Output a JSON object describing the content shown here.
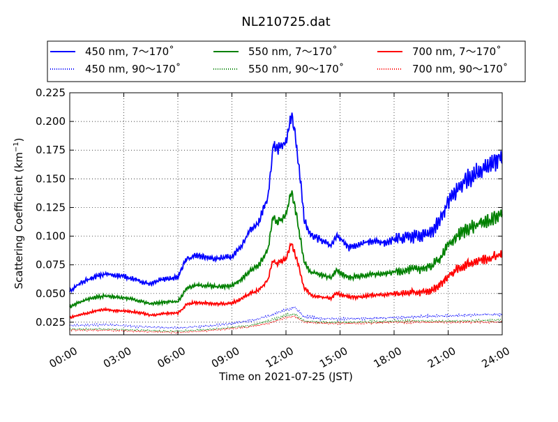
{
  "chart_data": {
    "type": "line",
    "title": "NL210725.dat",
    "xlabel": "Time on 2021-07-25 (JST)",
    "ylabel_main": "Scattering Coefficient (km",
    "ylabel_sup": "−1",
    "ylabel_close": ")",
    "xlim": [
      "00:00",
      "24:00"
    ],
    "ylim": [
      0.014,
      0.225
    ],
    "x_ticks": [
      "00:00",
      "03:00",
      "06:00",
      "09:00",
      "12:00",
      "15:00",
      "18:00",
      "21:00",
      "24:00"
    ],
    "y_ticks": [
      "0.025",
      "0.050",
      "0.075",
      "0.100",
      "0.125",
      "0.150",
      "0.175",
      "0.200",
      "0.225"
    ],
    "grid": true,
    "legend_position": "top",
    "series": [
      {
        "name": "450 nm, 7～170˚",
        "color": "#0000ff",
        "style": "solid",
        "key_hours": [
          0,
          0.5,
          1,
          1.5,
          2,
          2.5,
          3,
          3.5,
          4,
          4.5,
          5,
          5.5,
          6,
          6.3,
          6.5,
          7,
          7.5,
          8,
          8.5,
          9,
          9.5,
          10,
          10.5,
          11,
          11.3,
          11.5,
          12,
          12.3,
          12.5,
          12.8,
          13,
          13.3,
          13.5,
          14,
          14.5,
          14.8,
          15,
          15.5,
          16,
          16.5,
          17,
          17.5,
          18,
          18.5,
          19,
          19.5,
          20,
          20.5,
          21,
          21.5,
          22,
          22.5,
          23,
          23.5,
          24
        ],
        "values": [
          0.052,
          0.058,
          0.062,
          0.065,
          0.067,
          0.066,
          0.065,
          0.063,
          0.06,
          0.058,
          0.062,
          0.063,
          0.064,
          0.075,
          0.08,
          0.083,
          0.082,
          0.08,
          0.081,
          0.082,
          0.09,
          0.105,
          0.112,
          0.135,
          0.18,
          0.175,
          0.182,
          0.205,
          0.19,
          0.15,
          0.115,
          0.102,
          0.1,
          0.096,
          0.092,
          0.1,
          0.098,
          0.09,
          0.092,
          0.095,
          0.096,
          0.094,
          0.097,
          0.098,
          0.1,
          0.1,
          0.102,
          0.112,
          0.13,
          0.14,
          0.15,
          0.154,
          0.16,
          0.165,
          0.17
        ]
      },
      {
        "name": "550 nm, 7～170˚",
        "color": "#008000",
        "style": "solid",
        "key_hours": [
          0,
          0.5,
          1,
          1.5,
          2,
          2.5,
          3,
          3.5,
          4,
          4.5,
          5,
          5.5,
          6,
          6.3,
          6.5,
          7,
          7.5,
          8,
          8.5,
          9,
          9.5,
          10,
          10.5,
          11,
          11.3,
          11.5,
          12,
          12.3,
          12.5,
          12.8,
          13,
          13.3,
          13.5,
          14,
          14.5,
          14.8,
          15,
          15.5,
          16,
          16.5,
          17,
          17.5,
          18,
          18.5,
          19,
          19.5,
          20,
          20.5,
          21,
          21.5,
          22,
          22.5,
          23,
          23.5,
          24
        ],
        "values": [
          0.038,
          0.042,
          0.045,
          0.047,
          0.048,
          0.047,
          0.046,
          0.045,
          0.043,
          0.041,
          0.042,
          0.043,
          0.043,
          0.05,
          0.055,
          0.057,
          0.057,
          0.056,
          0.056,
          0.057,
          0.062,
          0.07,
          0.075,
          0.088,
          0.118,
          0.112,
          0.118,
          0.14,
          0.125,
          0.098,
          0.078,
          0.07,
          0.068,
          0.066,
          0.064,
          0.07,
          0.068,
          0.064,
          0.065,
          0.066,
          0.067,
          0.067,
          0.069,
          0.07,
          0.071,
          0.072,
          0.073,
          0.08,
          0.092,
          0.1,
          0.106,
          0.109,
          0.112,
          0.115,
          0.12
        ]
      },
      {
        "name": "700 nm, 7～170˚",
        "color": "#ff0000",
        "style": "solid",
        "key_hours": [
          0,
          0.5,
          1,
          1.5,
          2,
          2.5,
          3,
          3.5,
          4,
          4.5,
          5,
          5.5,
          6,
          6.3,
          6.5,
          7,
          7.5,
          8,
          8.5,
          9,
          9.5,
          10,
          10.5,
          11,
          11.3,
          11.5,
          12,
          12.3,
          12.5,
          12.8,
          13,
          13.3,
          13.5,
          14,
          14.5,
          14.8,
          15,
          15.5,
          16,
          16.5,
          17,
          17.5,
          18,
          18.5,
          19,
          19.5,
          20,
          20.5,
          21,
          21.5,
          22,
          22.5,
          23,
          23.5,
          24
        ],
        "values": [
          0.029,
          0.031,
          0.033,
          0.035,
          0.036,
          0.035,
          0.035,
          0.034,
          0.033,
          0.031,
          0.032,
          0.033,
          0.033,
          0.037,
          0.041,
          0.042,
          0.042,
          0.041,
          0.041,
          0.042,
          0.045,
          0.05,
          0.053,
          0.062,
          0.08,
          0.076,
          0.08,
          0.094,
          0.085,
          0.068,
          0.055,
          0.05,
          0.048,
          0.047,
          0.046,
          0.05,
          0.049,
          0.047,
          0.047,
          0.048,
          0.049,
          0.049,
          0.05,
          0.05,
          0.051,
          0.051,
          0.052,
          0.057,
          0.065,
          0.071,
          0.075,
          0.078,
          0.08,
          0.082,
          0.085
        ]
      },
      {
        "name": "450 nm, 90～170˚",
        "color": "#0000ff",
        "style": "dotted",
        "key_hours": [
          0,
          2,
          4,
          6,
          8,
          10,
          11,
          12,
          12.5,
          13,
          14,
          16,
          18,
          20,
          22,
          24
        ],
        "values": [
          0.022,
          0.023,
          0.021,
          0.02,
          0.022,
          0.026,
          0.03,
          0.036,
          0.038,
          0.03,
          0.028,
          0.028,
          0.029,
          0.03,
          0.031,
          0.032
        ]
      },
      {
        "name": "550 nm, 90～170˚",
        "color": "#008000",
        "style": "dotted",
        "key_hours": [
          0,
          2,
          4,
          6,
          8,
          10,
          11,
          12,
          12.5,
          13,
          14,
          16,
          18,
          20,
          22,
          24
        ],
        "values": [
          0.019,
          0.019,
          0.018,
          0.017,
          0.019,
          0.022,
          0.026,
          0.031,
          0.032,
          0.026,
          0.025,
          0.025,
          0.026,
          0.026,
          0.026,
          0.027
        ]
      },
      {
        "name": "700 nm, 90～170˚",
        "color": "#ff0000",
        "style": "dotted",
        "key_hours": [
          0,
          2,
          4,
          6,
          8,
          10,
          11,
          12,
          12.5,
          13,
          14,
          16,
          18,
          20,
          22,
          24
        ],
        "values": [
          0.018,
          0.018,
          0.017,
          0.016,
          0.018,
          0.021,
          0.024,
          0.029,
          0.03,
          0.025,
          0.024,
          0.024,
          0.025,
          0.025,
          0.025,
          0.025
        ]
      }
    ]
  }
}
